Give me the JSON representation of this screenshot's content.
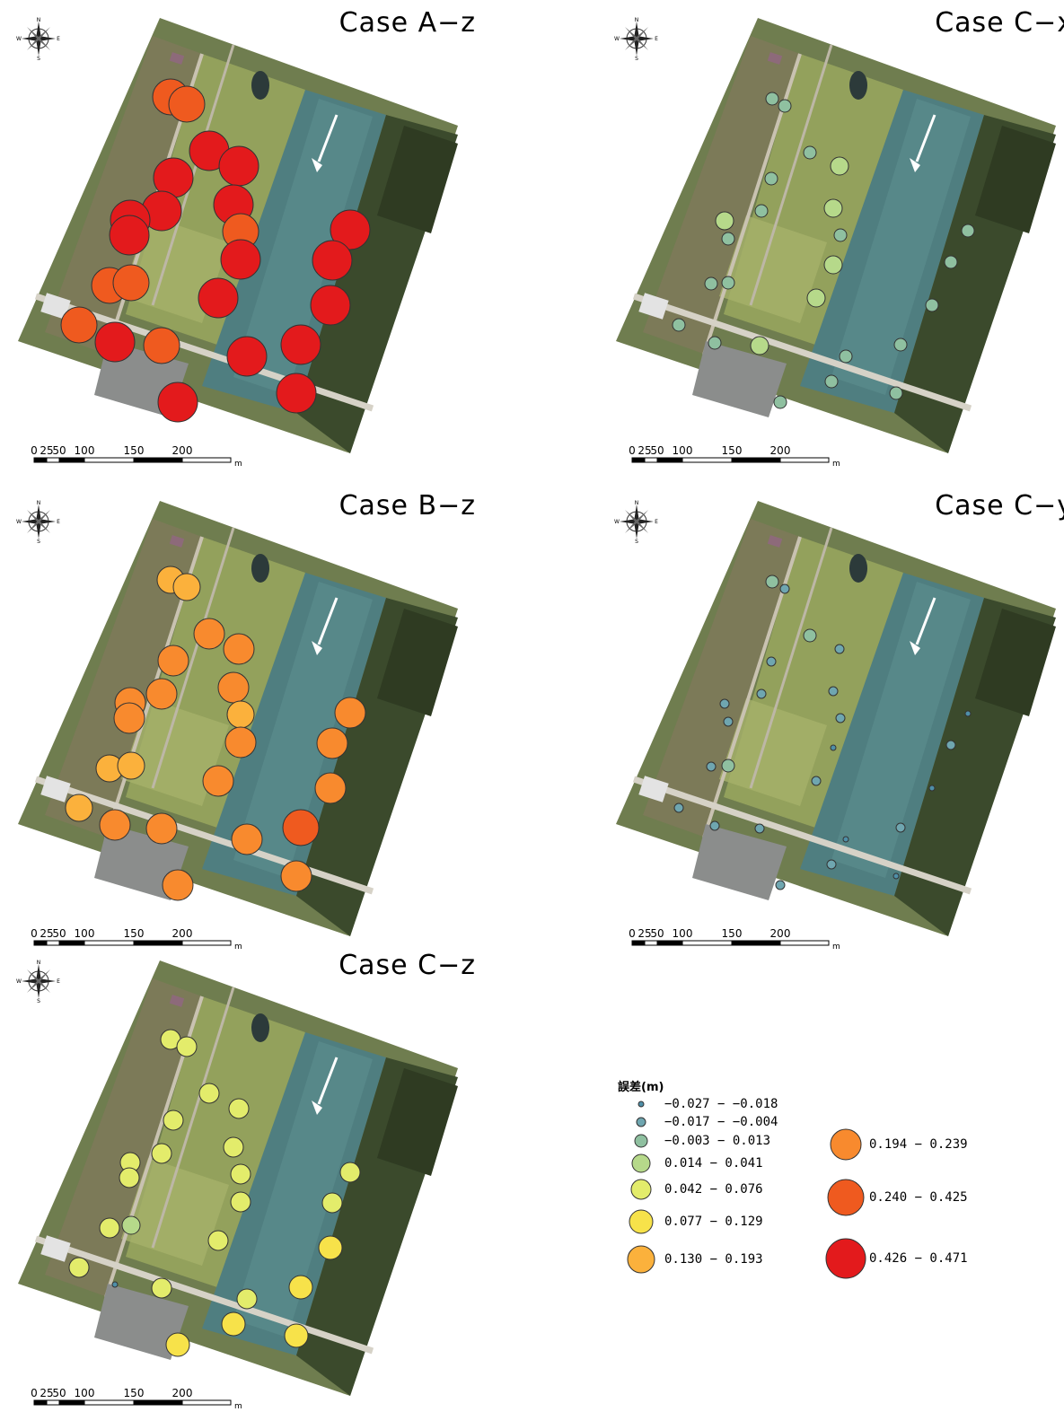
{
  "panels": [
    {
      "id": "A-z",
      "title": "Case A−z",
      "points": [
        {
          "site": 0,
          "cls": 8
        },
        {
          "site": 1,
          "cls": 8
        },
        {
          "site": 2,
          "cls": 9
        },
        {
          "site": 3,
          "cls": 9
        },
        {
          "site": 4,
          "cls": 9
        },
        {
          "site": 5,
          "cls": 9
        },
        {
          "site": 6,
          "cls": 9
        },
        {
          "site": 7,
          "cls": 9
        },
        {
          "site": 8,
          "cls": 8
        },
        {
          "site": 9,
          "cls": 9
        },
        {
          "site": 10,
          "cls": 9
        },
        {
          "site": 11,
          "cls": 9
        },
        {
          "site": 12,
          "cls": 9
        },
        {
          "site": 13,
          "cls": 8
        },
        {
          "site": 14,
          "cls": 8
        },
        {
          "site": 15,
          "cls": 9
        },
        {
          "site": 16,
          "cls": 9
        },
        {
          "site": 17,
          "cls": 8
        },
        {
          "site": 18,
          "cls": 9
        },
        {
          "site": 19,
          "cls": 8
        },
        {
          "site": 20,
          "cls": 9
        },
        {
          "site": 21,
          "cls": 9
        },
        {
          "site": 22,
          "cls": 9
        },
        {
          "site": 23,
          "cls": 9
        }
      ]
    },
    {
      "id": "B-z",
      "title": "Case B−z",
      "points": [
        {
          "site": 0,
          "cls": 6
        },
        {
          "site": 1,
          "cls": 6
        },
        {
          "site": 2,
          "cls": 7
        },
        {
          "site": 3,
          "cls": 7
        },
        {
          "site": 4,
          "cls": 7
        },
        {
          "site": 5,
          "cls": 7
        },
        {
          "site": 6,
          "cls": 7
        },
        {
          "site": 7,
          "cls": 7
        },
        {
          "site": 8,
          "cls": 6
        },
        {
          "site": 9,
          "cls": 7
        },
        {
          "site": 10,
          "cls": 7
        },
        {
          "site": 11,
          "cls": 7
        },
        {
          "site": 12,
          "cls": 7
        },
        {
          "site": 13,
          "cls": 6
        },
        {
          "site": 14,
          "cls": 6
        },
        {
          "site": 15,
          "cls": 7
        },
        {
          "site": 16,
          "cls": 7
        },
        {
          "site": 17,
          "cls": 6
        },
        {
          "site": 18,
          "cls": 7
        },
        {
          "site": 19,
          "cls": 7
        },
        {
          "site": 20,
          "cls": 7
        },
        {
          "site": 21,
          "cls": 8
        },
        {
          "site": 22,
          "cls": 7
        },
        {
          "site": 23,
          "cls": 7
        }
      ]
    },
    {
      "id": "C-z",
      "title": "Case C−z",
      "points": [
        {
          "site": 0,
          "cls": 4
        },
        {
          "site": 1,
          "cls": 4
        },
        {
          "site": 2,
          "cls": 4
        },
        {
          "site": 3,
          "cls": 4
        },
        {
          "site": 4,
          "cls": 4
        },
        {
          "site": 5,
          "cls": 4
        },
        {
          "site": 6,
          "cls": 4
        },
        {
          "site": 7,
          "cls": 4
        },
        {
          "site": 8,
          "cls": 4
        },
        {
          "site": 9,
          "cls": 4
        },
        {
          "site": 10,
          "cls": 4
        },
        {
          "site": 11,
          "cls": 4
        },
        {
          "site": 12,
          "cls": 4
        },
        {
          "site": 13,
          "cls": 4
        },
        {
          "site": 14,
          "cls": 3
        },
        {
          "site": 15,
          "cls": 4
        },
        {
          "site": 16,
          "cls": 5
        },
        {
          "site": 17,
          "cls": 4
        },
        {
          "site": 18,
          "cls": 0
        },
        {
          "site": 19,
          "cls": 4
        },
        {
          "site": 20,
          "cls": 4
        },
        {
          "site": 21,
          "cls": 5
        },
        {
          "site": 22,
          "cls": 5
        },
        {
          "site": 23,
          "cls": 5
        },
        {
          "site": 24,
          "cls": 5
        }
      ]
    },
    {
      "id": "C-x",
      "title": "Case C−x",
      "points": [
        {
          "site": 0,
          "cls": 2
        },
        {
          "site": 1,
          "cls": 2
        },
        {
          "site": 2,
          "cls": 2
        },
        {
          "site": 3,
          "cls": 3
        },
        {
          "site": 4,
          "cls": 2
        },
        {
          "site": 5,
          "cls": 2
        },
        {
          "site": 6,
          "cls": 3
        },
        {
          "site": 7,
          "cls": 3
        },
        {
          "site": 8,
          "cls": 2
        },
        {
          "site": 9,
          "cls": 2
        },
        {
          "site": 10,
          "cls": 2
        },
        {
          "site": 11,
          "cls": 3
        },
        {
          "site": 12,
          "cls": 2
        },
        {
          "site": 13,
          "cls": 2
        },
        {
          "site": 14,
          "cls": 2
        },
        {
          "site": 15,
          "cls": 3
        },
        {
          "site": 16,
          "cls": 2
        },
        {
          "site": 17,
          "cls": 2
        },
        {
          "site": 18,
          "cls": 2
        },
        {
          "site": 19,
          "cls": 3
        },
        {
          "site": 20,
          "cls": 2
        },
        {
          "site": 21,
          "cls": 2
        },
        {
          "site": 22,
          "cls": 2
        },
        {
          "site": 23,
          "cls": 2
        },
        {
          "site": 24,
          "cls": 2
        }
      ]
    },
    {
      "id": "C-y",
      "title": "Case C−y",
      "points": [
        {
          "site": 0,
          "cls": 2
        },
        {
          "site": 1,
          "cls": 1
        },
        {
          "site": 2,
          "cls": 2
        },
        {
          "site": 3,
          "cls": 1
        },
        {
          "site": 4,
          "cls": 1
        },
        {
          "site": 5,
          "cls": 1
        },
        {
          "site": 6,
          "cls": 1
        },
        {
          "site": 7,
          "cls": 1
        },
        {
          "site": 8,
          "cls": 1
        },
        {
          "site": 9,
          "cls": 1
        },
        {
          "site": 10,
          "cls": 0
        },
        {
          "site": 11,
          "cls": 0
        },
        {
          "site": 12,
          "cls": 1
        },
        {
          "site": 13,
          "cls": 1
        },
        {
          "site": 14,
          "cls": 2
        },
        {
          "site": 15,
          "cls": 1
        },
        {
          "site": 16,
          "cls": 0
        },
        {
          "site": 17,
          "cls": 1
        },
        {
          "site": 18,
          "cls": 1
        },
        {
          "site": 19,
          "cls": 1
        },
        {
          "site": 20,
          "cls": 0
        },
        {
          "site": 21,
          "cls": 1
        },
        {
          "site": 22,
          "cls": 0
        },
        {
          "site": 23,
          "cls": 1
        },
        {
          "site": 24,
          "cls": 1
        }
      ]
    }
  ],
  "legend": {
    "title": "誤差(m)",
    "classes": [
      {
        "label": "−0.027 − −0.018",
        "color": "#4f8fa8"
      },
      {
        "label": "−0.017 − −0.004",
        "color": "#6fa6b0"
      },
      {
        "label": "−0.003 − 0.013",
        "color": "#8fc0a0"
      },
      {
        "label": "0.014 − 0.041",
        "color": "#b6d98a"
      },
      {
        "label": "0.042 − 0.076",
        "color": "#e3ec6b"
      },
      {
        "label": "0.077 − 0.129",
        "color": "#f7e24a"
      },
      {
        "label": "0.130 − 0.193",
        "color": "#fbb13c"
      },
      {
        "label": "0.194 − 0.239",
        "color": "#f88a2e"
      },
      {
        "label": "0.240 − 0.425",
        "color": "#ef5a1f"
      },
      {
        "label": "0.426 − 0.471",
        "color": "#e31a1c"
      }
    ]
  },
  "scalebar": {
    "ticks": [
      "0",
      "25",
      "50",
      "100",
      "150",
      "200"
    ],
    "unit": "m"
  },
  "compass": {
    "n": "N",
    "s": "S",
    "e": "E",
    "w": "W"
  }
}
